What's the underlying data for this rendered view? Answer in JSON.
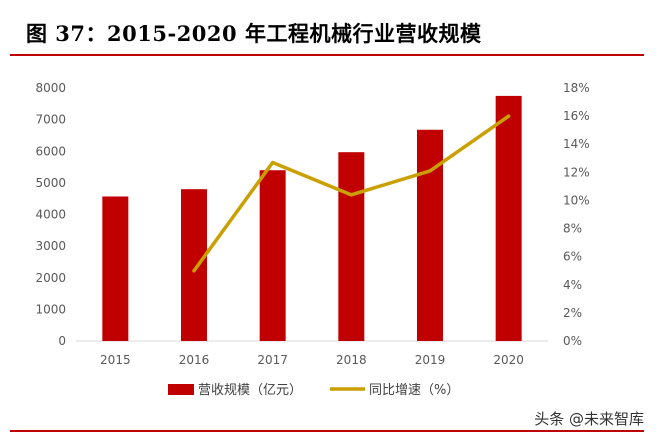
{
  "header": {
    "title": "图 37：2015-2020 年工程机械行业营收规模"
  },
  "watermark": "头条 @未来智库",
  "colors": {
    "accent": "#c00000",
    "bar": "#c00000",
    "line": "#c9a000"
  },
  "chart_data": {
    "type": "bar",
    "categories": [
      "2015",
      "2016",
      "2017",
      "2018",
      "2019",
      "2020"
    ],
    "series": [
      {
        "name": "营收规模（亿元）",
        "type": "bar",
        "axis": "left",
        "values": [
          4570,
          4800,
          5400,
          5970,
          6680,
          7750
        ]
      },
      {
        "name": "同比增速（%）",
        "type": "line",
        "axis": "right",
        "values": [
          null,
          5.0,
          12.7,
          10.4,
          12.1,
          16.0
        ]
      }
    ],
    "y_left": {
      "ylim": [
        0,
        8000
      ],
      "ticks": [
        "0",
        "1000",
        "2000",
        "3000",
        "4000",
        "5000",
        "6000",
        "7000",
        "8000"
      ]
    },
    "y_right": {
      "ylim": [
        0,
        18
      ],
      "ticks": [
        "0%",
        "2%",
        "4%",
        "6%",
        "8%",
        "10%",
        "12%",
        "14%",
        "16%",
        "18%"
      ]
    },
    "grid": false,
    "legend": "bottom"
  }
}
